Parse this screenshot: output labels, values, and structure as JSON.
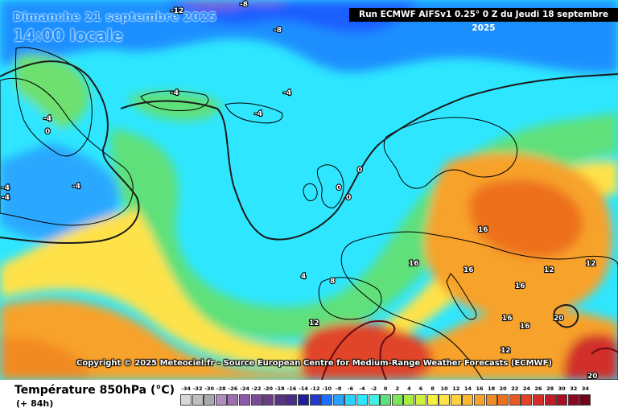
{
  "header": {
    "date": "Dimanche 21 septembre 2025",
    "local_time": "14:00 locale",
    "run_info": "Run ECMWF AIFSv1 0.25° 0 Z du Jeudi 18 septembre 2025"
  },
  "map": {
    "copyright": "Copyright © 2025 Meteociel.fr - Source European Centre for Medium-Range Weather Forecasts (ECMWF)",
    "isotherm_labels": [
      "-12",
      "-8",
      "-8",
      "-4",
      "-4",
      "-4",
      "-4",
      "-4",
      "-4",
      "-4",
      "0",
      "0",
      "0",
      "0",
      "4",
      "8",
      "12",
      "16",
      "16",
      "16",
      "16",
      "16",
      "16",
      "12",
      "12",
      "12",
      "20",
      "20"
    ],
    "colors": {
      "cold_purple": "#9b6fd6",
      "cold_blue": "#1e6fff",
      "cyan": "#2ee6ff",
      "green": "#5ee07a",
      "yellow": "#ffe24a",
      "orange": "#f7a22c",
      "red": "#e0452a",
      "dark_red": "#b3132b",
      "land_outline": "#000000",
      "zero_isotherm": "#1a1a1a"
    }
  },
  "footer": {
    "parameter": "Température 850hPa (°C)",
    "lead_time": "(+ 84h)"
  },
  "legend": {
    "labels": [
      "-34",
      "-32",
      "-30",
      "-28",
      "-26",
      "-24",
      "-22",
      "-20",
      "-18",
      "-16",
      "-14",
      "-12",
      "-10",
      "-8",
      "-6",
      "-4",
      "-2",
      "0",
      "2",
      "4",
      "6",
      "8",
      "10",
      "12",
      "14",
      "16",
      "18",
      "20",
      "22",
      "24",
      "26",
      "28",
      "30",
      "32",
      "34"
    ],
    "colors": [
      "#d7d7d7",
      "#bfbfbf",
      "#a9a9a9",
      "#b58cc0",
      "#9b6fb0",
      "#8a5aa6",
      "#7a4b96",
      "#6b3d86",
      "#5a3380",
      "#4c2a8a",
      "#1f1f9a",
      "#1e3cc8",
      "#1e6fff",
      "#2aa0ff",
      "#2bd2ff",
      "#2ee6ff",
      "#46f0e0",
      "#5ee07a",
      "#7ce65a",
      "#a6ee45",
      "#d0f040",
      "#f4f040",
      "#ffe24a",
      "#ffd23c",
      "#f9b830",
      "#f7a22c",
      "#f28a24",
      "#ee701e",
      "#e85a22",
      "#e0452a",
      "#d22d2a",
      "#c01c2a",
      "#a80e26",
      "#8c0820",
      "#6e041a"
    ]
  }
}
